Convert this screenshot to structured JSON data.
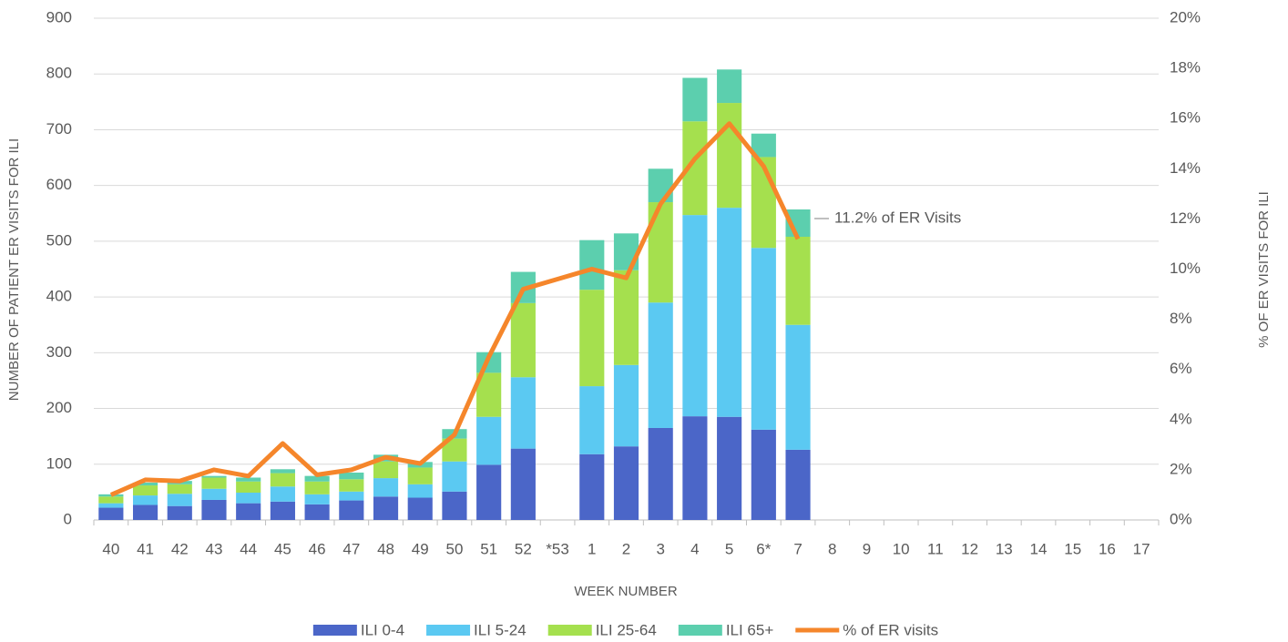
{
  "chart_data": {
    "type": "stacked-bar-line",
    "x_label": "WEEK NUMBER",
    "y_label": "NUMBER OF PATIENT ER VISITS FOR ILI",
    "y2_label": "% OF ER VISITS FOR ILI",
    "categories": [
      "40",
      "41",
      "42",
      "43",
      "44",
      "45",
      "46",
      "47",
      "48",
      "49",
      "50",
      "51",
      "52",
      "*53",
      "1",
      "2",
      "3",
      "4",
      "5",
      "6*",
      "7",
      "8",
      "9",
      "10",
      "11",
      "12",
      "13",
      "14",
      "15",
      "16",
      "17"
    ],
    "series": [
      {
        "name": "ILI 0-4",
        "color": "#4b66c8",
        "values": [
          22,
          27,
          25,
          36,
          30,
          33,
          28,
          35,
          42,
          40,
          51,
          99,
          128,
          null,
          118,
          132,
          165,
          186,
          185,
          162,
          126,
          null,
          null,
          null,
          null,
          null,
          null,
          null,
          null,
          null,
          null
        ]
      },
      {
        "name": "ILI 5-24",
        "color": "#5bc9f2",
        "values": [
          8,
          17,
          22,
          20,
          19,
          27,
          18,
          16,
          33,
          24,
          54,
          86,
          128,
          null,
          122,
          146,
          225,
          361,
          375,
          326,
          224,
          null,
          null,
          null,
          null,
          null,
          null,
          null,
          null,
          null,
          null
        ]
      },
      {
        "name": "ILI 25-64",
        "color": "#a5e04e",
        "values": [
          12,
          18,
          17,
          20,
          20,
          24,
          23,
          22,
          30,
          30,
          41,
          79,
          133,
          null,
          173,
          170,
          180,
          168,
          188,
          163,
          158,
          null,
          null,
          null,
          null,
          null,
          null,
          null,
          null,
          null,
          null
        ]
      },
      {
        "name": "ILI 65+",
        "color": "#5ccfae",
        "values": [
          4,
          5,
          6,
          3,
          7,
          7,
          10,
          12,
          12,
          10,
          17,
          37,
          56,
          null,
          89,
          66,
          60,
          78,
          60,
          42,
          49,
          null,
          null,
          null,
          null,
          null,
          null,
          null,
          null,
          null,
          null
        ]
      },
      {
        "name": "% of ER visits",
        "color": "#f5862b",
        "axis": "y2",
        "values": [
          1.0,
          1.6,
          1.55,
          2.0,
          1.75,
          3.05,
          1.8,
          2.0,
          2.5,
          2.25,
          3.4,
          6.5,
          9.2,
          9.6,
          10.0,
          9.65,
          12.6,
          14.4,
          15.8,
          14.1,
          11.2,
          null,
          null,
          null,
          null,
          null,
          null,
          null,
          null,
          null,
          null
        ]
      }
    ],
    "annotation": "11.2% of ER Visits",
    "ylim": [
      0,
      900
    ],
    "yticks": [
      0,
      100,
      200,
      300,
      400,
      500,
      600,
      700,
      800,
      900
    ],
    "y2lim": [
      0,
      20
    ],
    "y2ticks": [
      {
        "value": 0,
        "label": "0%"
      },
      {
        "value": 2,
        "label": "2%"
      },
      {
        "value": 4,
        "label": "4%"
      },
      {
        "value": 6,
        "label": "6%"
      },
      {
        "value": 8,
        "label": "8%"
      },
      {
        "value": 10,
        "label": "10%"
      },
      {
        "value": 12,
        "label": "12%"
      },
      {
        "value": 14,
        "label": "14%"
      },
      {
        "value": 16,
        "label": "16%"
      },
      {
        "value": 18,
        "label": "18%"
      },
      {
        "value": 20,
        "label": "20%"
      }
    ],
    "grid": true,
    "legend": "bottom"
  }
}
